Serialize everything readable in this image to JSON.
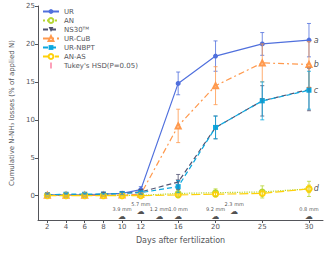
{
  "chart_data": {
    "type": "line",
    "xlabel": "Days after fertilization",
    "ylabel": "Cumulative N-NH₃ losses (% of applied N)",
    "x": [
      2,
      4,
      6,
      8,
      10,
      12,
      16,
      20,
      25,
      30
    ],
    "xlim": [
      1,
      31.5
    ],
    "xticks": [
      2,
      4,
      6,
      8,
      10,
      12,
      16,
      20,
      25,
      30
    ],
    "ylim": [
      -3.2,
      25
    ],
    "yticks": [
      0,
      5,
      10,
      15,
      20,
      25
    ],
    "grid": false,
    "legend": "upper left",
    "error_bar_label": "Tukey's HSD(P=0.05)",
    "series": [
      {
        "name": "UR",
        "values": [
          0.1,
          0.1,
          0.1,
          0.2,
          0.3,
          0.8,
          14.8,
          18.4,
          20.0,
          20.5
        ],
        "errors": [
          0.25,
          0.25,
          0.25,
          0.25,
          0.25,
          0.4,
          1.5,
          2.0,
          1.5,
          2.2
        ],
        "marker": "circle",
        "line_style": "solid"
      },
      {
        "name": "AN",
        "values": [
          0.05,
          0.05,
          0.05,
          0.05,
          0.05,
          0.05,
          0.3,
          0.4,
          0.5,
          0.9
        ],
        "errors": [
          0.1,
          0.1,
          0.1,
          0.1,
          0.1,
          0.1,
          0.5,
          0.5,
          0.8,
          1.0
        ],
        "marker": "open_circle",
        "line_style": "dotted"
      },
      {
        "name": "NS30ᵀᴹ",
        "values": [
          0.1,
          0.1,
          0.1,
          0.2,
          0.3,
          0.5,
          1.8,
          9.0,
          12.5,
          14.0
        ],
        "errors": [
          0.1,
          0.1,
          0.1,
          0.2,
          0.2,
          0.3,
          1.0,
          1.5,
          2.0,
          2.8
        ],
        "marker": "triangle_down",
        "line_style": "dashed"
      },
      {
        "name": "UR-CuB",
        "values": [
          0.05,
          0.05,
          0.05,
          0.05,
          0.1,
          0.2,
          9.2,
          14.5,
          17.5,
          17.3
        ],
        "errors": [
          0.1,
          0.1,
          0.1,
          0.1,
          0.1,
          0.2,
          2.2,
          2.5,
          2.5,
          3.0
        ],
        "marker": "open_triangle_up",
        "line_style": "dashdot"
      },
      {
        "name": "UR-NBPT",
        "values": [
          0.1,
          0.2,
          0.2,
          0.2,
          0.3,
          0.4,
          1.2,
          9.0,
          12.5,
          13.9
        ],
        "errors": [
          0.1,
          0.1,
          0.1,
          0.1,
          0.2,
          0.2,
          0.8,
          1.5,
          2.5,
          2.5
        ],
        "marker": "square",
        "line_style": "dashed"
      },
      {
        "name": "AN-AS",
        "values": [
          0.0,
          0.0,
          0.0,
          0.0,
          0.0,
          0.0,
          0.1,
          0.2,
          0.3,
          0.9
        ],
        "errors": [
          0.05,
          0.05,
          0.05,
          0.05,
          0.05,
          0.05,
          0.1,
          0.2,
          0.3,
          0.5
        ],
        "marker": "open_circle",
        "line_style": "longdashed"
      }
    ],
    "annotations": [
      {
        "text": "a",
        "x": 30.5,
        "y": 20.5,
        "align": "left"
      },
      {
        "text": "b",
        "x": 30.5,
        "y": 17.3,
        "align": "left"
      },
      {
        "text": "c",
        "x": 30.5,
        "y": 13.9,
        "align": "left"
      },
      {
        "text": "d",
        "x": 30.5,
        "y": 0.9,
        "align": "left"
      },
      {
        "text": "3.9 mm",
        "x": 10,
        "y": -1.3,
        "align": "below"
      },
      {
        "text": "☁",
        "x": 10,
        "y": -2.2,
        "align": "below"
      },
      {
        "text": "5.7 mm",
        "x": 12,
        "y": -0.7,
        "align": "below"
      },
      {
        "text": "☁",
        "x": 12,
        "y": -1.6,
        "align": "below"
      },
      {
        "text": "1.2 mm",
        "x": 14,
        "y": -1.3,
        "align": "below"
      },
      {
        "text": "☁",
        "x": 14,
        "y": -2.2,
        "align": "below"
      },
      {
        "text": "1.0 mm",
        "x": 16,
        "y": -1.3,
        "align": "below"
      },
      {
        "text": "☁",
        "x": 16,
        "y": -2.2,
        "align": "below"
      },
      {
        "text": "9.2 mm",
        "x": 20,
        "y": -1.3,
        "align": "below"
      },
      {
        "text": "☁",
        "x": 20,
        "y": -2.2,
        "align": "below"
      },
      {
        "text": "2.3 mm",
        "x": 22,
        "y": -0.7,
        "align": "below"
      },
      {
        "text": "☁",
        "x": 22,
        "y": -1.6,
        "align": "below"
      },
      {
        "text": "0.8 mm",
        "x": 30,
        "y": -1.3,
        "align": "below"
      },
      {
        "text": "☁",
        "x": 30,
        "y": -2.2,
        "align": "below"
      }
    ]
  }
}
